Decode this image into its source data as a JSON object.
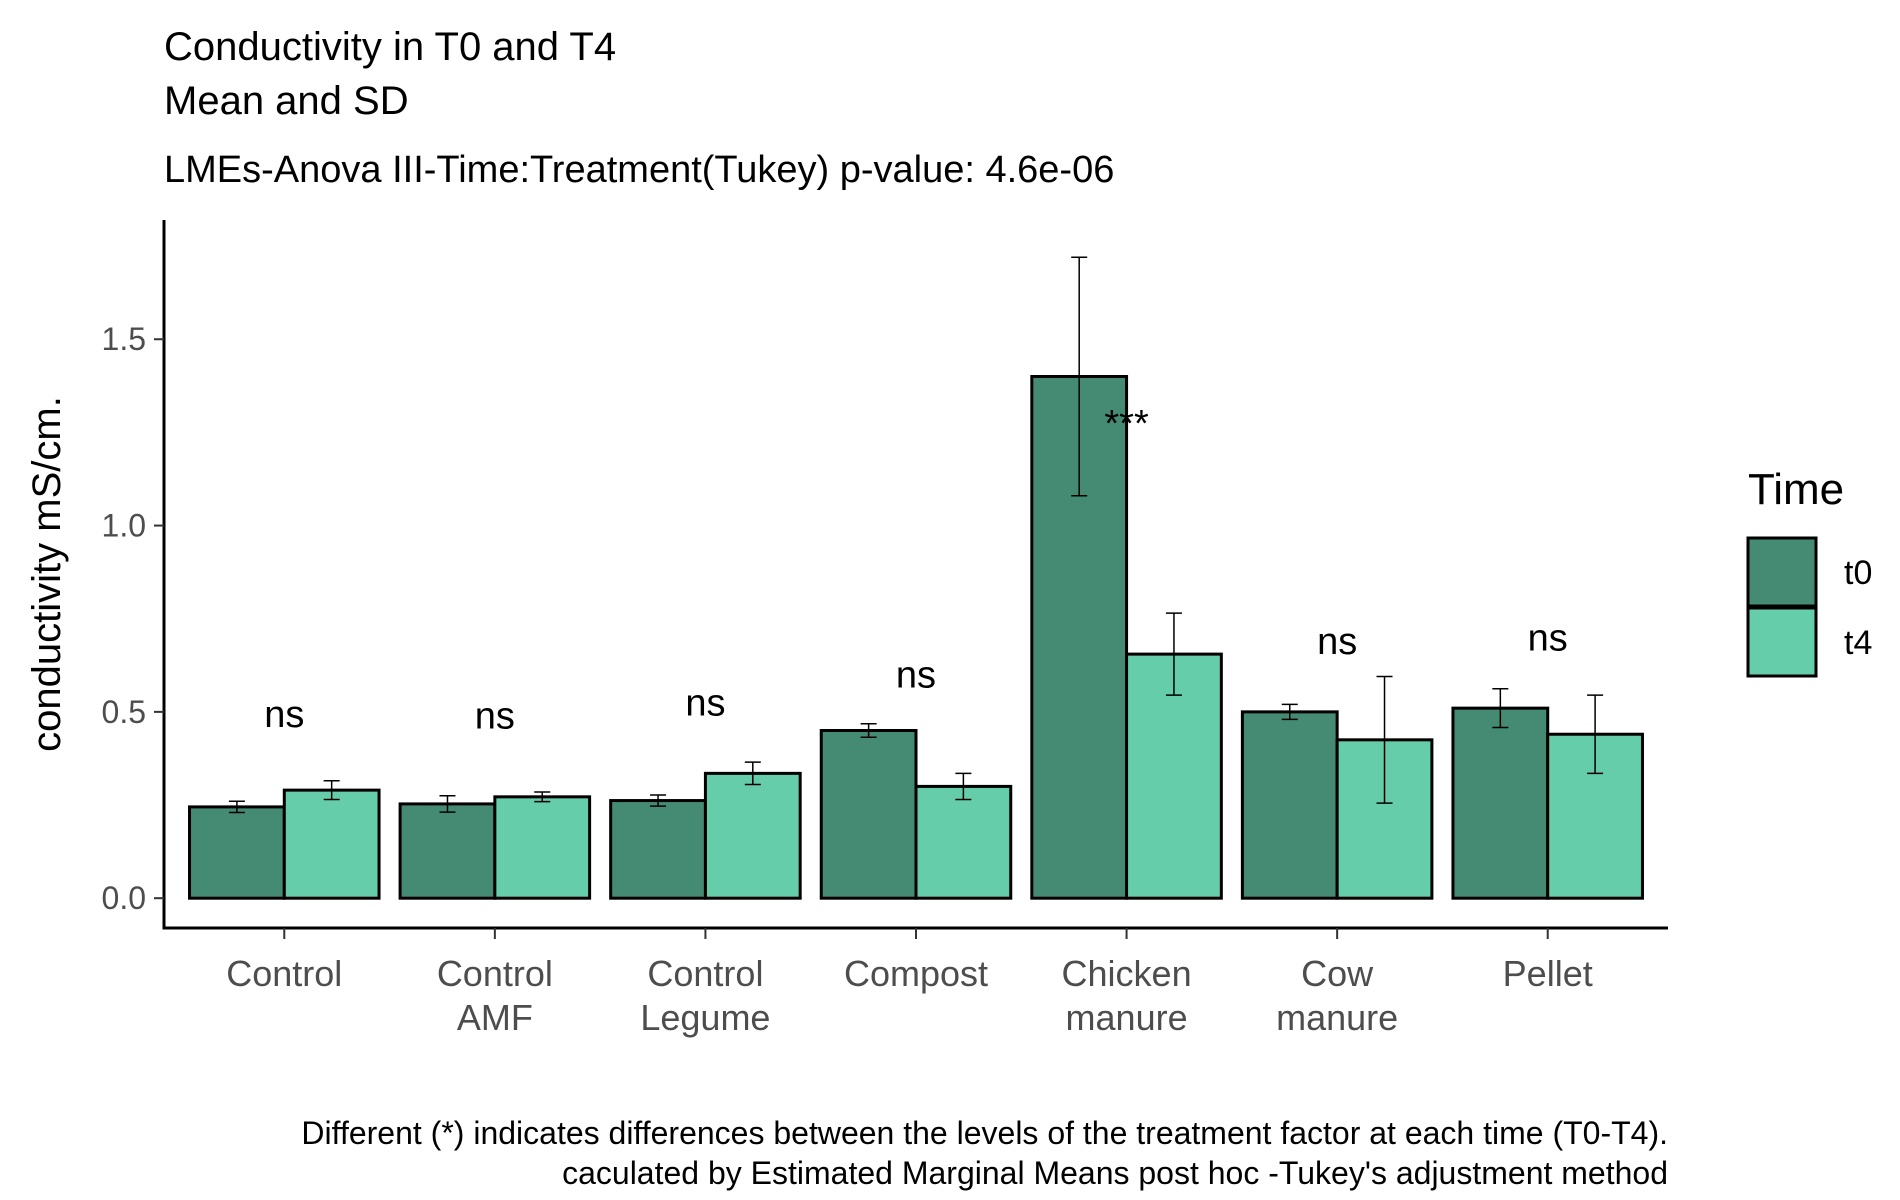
{
  "chart_data": {
    "type": "bar",
    "title": "Conductivity in T0 and T4",
    "title_line2": "Mean and SD",
    "subtitle": "LMEs-Anova III-Time:Treatment(Tukey) p-value: 4.6e-06",
    "xlabel": "",
    "ylabel": "conductivity mS/cm.",
    "ylim": [
      -0.08,
      1.82
    ],
    "yticks": [
      0.0,
      0.5,
      1.0,
      1.5
    ],
    "ytick_labels": [
      "0.0",
      "0.5",
      "1.0",
      "1.5"
    ],
    "grid": false,
    "legend_position": "right",
    "legend_title": "Time",
    "categories": [
      [
        "Control"
      ],
      [
        "Control",
        "AMF"
      ],
      [
        "Control",
        "Legume"
      ],
      [
        "Compost"
      ],
      [
        "Chicken",
        "manure"
      ],
      [
        "Cow",
        "manure"
      ],
      [
        "Pellet"
      ]
    ],
    "series": [
      {
        "name": "t0",
        "color": "#458B73",
        "values": [
          0.245,
          0.253,
          0.262,
          0.45,
          1.4,
          0.5,
          0.51
        ],
        "sd": [
          0.015,
          0.022,
          0.015,
          0.018,
          0.32,
          0.02,
          0.052
        ]
      },
      {
        "name": "t4",
        "color": "#66CDAA",
        "values": [
          0.29,
          0.272,
          0.335,
          0.3,
          0.655,
          0.425,
          0.44
        ],
        "sd": [
          0.025,
          0.013,
          0.03,
          0.035,
          0.11,
          0.17,
          0.105
        ]
      }
    ],
    "annotations": [
      {
        "category_index": 0,
        "label": "ns",
        "y": 0.46
      },
      {
        "category_index": 1,
        "label": "ns",
        "y": 0.455
      },
      {
        "category_index": 2,
        "label": "ns",
        "y": 0.49
      },
      {
        "category_index": 3,
        "label": "ns",
        "y": 0.565
      },
      {
        "category_index": 4,
        "label": "***",
        "y": 1.24
      },
      {
        "category_index": 5,
        "label": "ns",
        "y": 0.655
      },
      {
        "category_index": 6,
        "label": "ns",
        "y": 0.665
      }
    ],
    "caption": [
      "Different (*) indicates differences between the levels of the treatment factor at each time (T0-T4).",
      "caculated by Estimated Marginal Means post hoc -Tukey's adjustment method"
    ]
  }
}
